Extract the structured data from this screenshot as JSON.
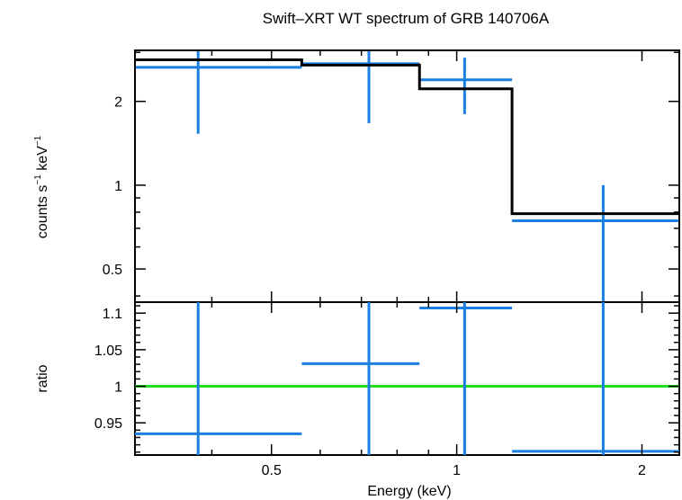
{
  "chart_data": [
    {
      "type": "scatter",
      "panel": "spectrum",
      "title": "Swift–XRT WT spectrum of GRB 140706A",
      "ylabel_main": "counts s",
      "ylabel_exp1": "−1",
      "ylabel_mid": " keV",
      "ylabel_exp2": "−1",
      "y_scale": "log",
      "x_scale": "log",
      "xlim": [
        0.3,
        2.3
      ],
      "ylim": [
        0.38,
        3.05
      ],
      "y_ticks": [
        {
          "value": 0.5,
          "label": "0.5"
        },
        {
          "value": 1,
          "label": "1"
        },
        {
          "value": 2,
          "label": "2"
        }
      ],
      "data_color": "#1a7fe0",
      "model_color": "#000000",
      "data": [
        {
          "x": 0.38,
          "xlo": 0.3,
          "xhi": 0.56,
          "y": 2.65,
          "ylo": 1.53,
          "yhi": 3.05
        },
        {
          "x": 0.72,
          "xlo": 0.56,
          "xhi": 0.87,
          "y": 2.73,
          "ylo": 1.67,
          "yhi": 3.05
        },
        {
          "x": 1.03,
          "xlo": 0.87,
          "xhi": 1.23,
          "y": 2.39,
          "ylo": 1.8,
          "yhi": 2.87
        },
        {
          "x": 1.73,
          "xlo": 1.23,
          "xhi": 2.3,
          "y": 0.745,
          "ylo": 0.38,
          "yhi": 1.0
        }
      ],
      "model": [
        {
          "xlo": 0.3,
          "xhi": 0.56,
          "y": 2.82
        },
        {
          "xlo": 0.56,
          "xhi": 0.87,
          "y": 2.7
        },
        {
          "xlo": 0.87,
          "xhi": 1.23,
          "y": 2.22
        },
        {
          "xlo": 1.23,
          "xhi": 2.3,
          "y": 0.79
        }
      ]
    },
    {
      "type": "scatter",
      "panel": "ratio",
      "xlabel": "Energy (keV)",
      "ylabel": "ratio",
      "x_scale": "log",
      "xlim": [
        0.3,
        2.3
      ],
      "ylim": [
        0.906,
        1.115
      ],
      "x_ticks": [
        {
          "value": 0.5,
          "label": "0.5"
        },
        {
          "value": 1,
          "label": "1"
        },
        {
          "value": 2,
          "label": "2"
        }
      ],
      "y_ticks": [
        {
          "value": 0.95,
          "label": "0.95"
        },
        {
          "value": 1,
          "label": "1"
        },
        {
          "value": 1.05,
          "label": "1.05"
        },
        {
          "value": 1.1,
          "label": "1.1"
        }
      ],
      "reference_line": 1,
      "reference_color": "#22dd22",
      "data_color": "#1a7fe0",
      "data": [
        {
          "x": 0.38,
          "xlo": 0.3,
          "xhi": 0.56,
          "y": 0.935,
          "ylo": 0.906,
          "yhi": 1.115
        },
        {
          "x": 0.72,
          "xlo": 0.56,
          "xhi": 0.87,
          "y": 1.031,
          "ylo": 0.906,
          "yhi": 1.115
        },
        {
          "x": 1.03,
          "xlo": 0.87,
          "xhi": 1.23,
          "y": 1.107,
          "ylo": 0.906,
          "yhi": 1.115
        },
        {
          "x": 1.73,
          "xlo": 1.23,
          "xhi": 2.3,
          "y": 0.911,
          "ylo": 0.906,
          "yhi": 1.115
        }
      ]
    }
  ]
}
